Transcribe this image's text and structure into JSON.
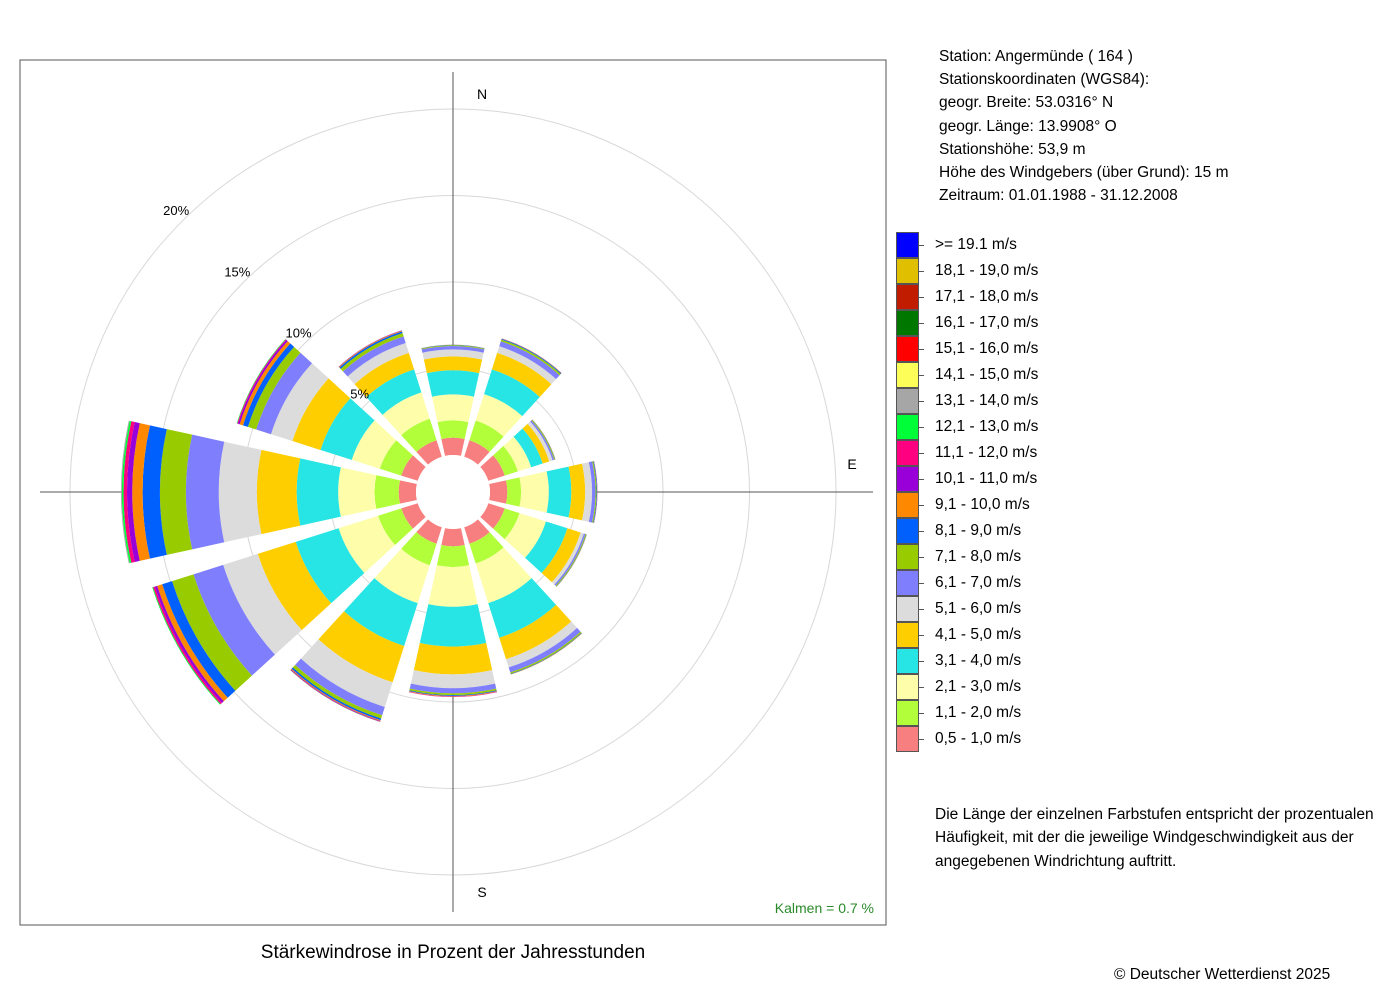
{
  "station": {
    "station_line": "Station:  Angermünde  ( 164 )",
    "coords_header": "Stationskoordinaten (WGS84):",
    "latitude": "geogr. Breite: 53.0316° N",
    "longitude": "geogr. Länge: 13.9908° O",
    "altitude": "Stationshöhe: 53,9 m",
    "sensor_height": "Höhe des Windgebers (über Grund): 15 m",
    "period": "Zeitraum: 01.01.1988 - 31.12.2008"
  },
  "note": {
    "line1": "Die Länge der einzelnen Farbstufen entspricht der prozentualen",
    "line2": "Häufigkeit, mit der die jeweilige Windgeschwindigkeit aus der",
    "line3": "angegebenen Windrichtung auftritt."
  },
  "caption": "Stärkewindrose in Prozent der Jahresstunden",
  "copyright": "© Deutscher Wetterdienst  2025",
  "chart_data": {
    "type": "wind-rose",
    "title": "Stärkewindrose in Prozent der Jahresstunden",
    "calm_label": "Kalmen  =  0.7 %",
    "direction_labels": [
      "N",
      "E",
      "S"
    ],
    "ring_labels": [
      "5%",
      "10%",
      "15%",
      "20%"
    ],
    "ring_values": [
      5,
      10,
      15,
      20
    ],
    "scale_max": 23,
    "sector_width_deg": 30,
    "speed_classes": [
      {
        "label": "0,5 - 1,0 m/s",
        "color": "#f87f7f"
      },
      {
        "label": "1,1 - 2,0 m/s",
        "color": "#b2fe3a"
      },
      {
        "label": "2,1 - 3,0 m/s",
        "color": "#fefeaa"
      },
      {
        "label": "3,1 - 4,0 m/s",
        "color": "#28e5e5"
      },
      {
        "label": "4,1 - 5,0 m/s",
        "color": "#fece00"
      },
      {
        "label": "5,1 - 6,0 m/s",
        "color": "#dcdcdc"
      },
      {
        "label": "6,1 - 7,0 m/s",
        "color": "#7f7ffe"
      },
      {
        "label": "7,1 - 8,0 m/s",
        "color": "#99cc00"
      },
      {
        "label": "8,1 - 9,0 m/s",
        "color": "#0060fe"
      },
      {
        "label": "9,1 - 10,0 m/s",
        "color": "#fe8800"
      },
      {
        "label": "10,1 - 11,0 m/s",
        "color": "#9900d9"
      },
      {
        "label": "11,1 - 12,0 m/s",
        "color": "#fe0080"
      },
      {
        "label": "12,1 - 13,0 m/s",
        "color": "#00fe38"
      },
      {
        "label": "13,1 - 14,0 m/s",
        "color": "#a6a6a6"
      },
      {
        "label": "14,1 - 15,0 m/s",
        "color": "#fefe59"
      },
      {
        "label": "15,1 - 16,0 m/s",
        "color": "#fe0000"
      },
      {
        "label": "16,1 - 17,0 m/s",
        "color": "#007800"
      },
      {
        "label": "17,1 - 18,0 m/s",
        "color": "#c21c00"
      },
      {
        "label": "18,1 - 19,0 m/s",
        "color": "#e0be00"
      },
      {
        "label": ">= 19.1 m/s",
        "color": "#0000fe"
      }
    ],
    "series": [
      {
        "direction": 0,
        "values": [
          1.0,
          1.0,
          1.5,
          1.4,
          0.8,
          0.4,
          0.2,
          0.05,
          0.02,
          0.01,
          0,
          0,
          0,
          0,
          0,
          0,
          0,
          0,
          0,
          0
        ]
      },
      {
        "direction": 30,
        "values": [
          1.0,
          1.2,
          1.6,
          1.5,
          1.0,
          0.4,
          0.3,
          0.1,
          0.05,
          0.02,
          0.01,
          0,
          0,
          0,
          0,
          0,
          0,
          0,
          0,
          0
        ]
      },
      {
        "direction": 60,
        "values": [
          1.0,
          0.8,
          0.8,
          0.7,
          0.4,
          0.2,
          0.1,
          0.05,
          0.02,
          0.01,
          0,
          0,
          0,
          0,
          0,
          0,
          0,
          0,
          0,
          0
        ]
      },
      {
        "direction": 90,
        "values": [
          1.0,
          0.8,
          1.6,
          1.3,
          0.8,
          0.4,
          0.2,
          0.06,
          0.03,
          0.01,
          0.01,
          0,
          0,
          0,
          0,
          0,
          0,
          0,
          0,
          0
        ]
      },
      {
        "direction": 120,
        "values": [
          1.0,
          0.9,
          1.6,
          1.3,
          0.8,
          0.2,
          0.1,
          0.05,
          0.02,
          0.01,
          0,
          0,
          0,
          0,
          0,
          0,
          0,
          0,
          0,
          0
        ]
      },
      {
        "direction": 150,
        "values": [
          1.0,
          1.2,
          2.4,
          2.1,
          1.3,
          0.5,
          0.3,
          0.08,
          0.03,
          0.02,
          0,
          0,
          0,
          0,
          0,
          0,
          0,
          0,
          0,
          0
        ]
      },
      {
        "direction": 180,
        "values": [
          1.0,
          1.2,
          2.3,
          2.3,
          1.6,
          0.8,
          0.3,
          0.1,
          0.05,
          0.03,
          0.02,
          0.01,
          0,
          0,
          0,
          0,
          0,
          0,
          0,
          0
        ]
      },
      {
        "direction": 210,
        "values": [
          1.0,
          1.3,
          2.3,
          2.6,
          2.2,
          1.5,
          0.5,
          0.2,
          0.1,
          0.05,
          0.03,
          0.02,
          0.01,
          0,
          0,
          0,
          0,
          0,
          0,
          0
        ]
      },
      {
        "direction": 240,
        "values": [
          1.0,
          1.4,
          2.4,
          2.6,
          2.3,
          2.1,
          1.8,
          1.3,
          0.6,
          0.3,
          0.15,
          0.1,
          0.05,
          0,
          0,
          0,
          0,
          0,
          0,
          0
        ]
      },
      {
        "direction": 270,
        "values": [
          1.0,
          1.4,
          2.1,
          2.4,
          2.3,
          2.2,
          1.9,
          1.5,
          1.0,
          0.6,
          0.3,
          0.2,
          0.1,
          0.05,
          0,
          0,
          0,
          0,
          0,
          0
        ]
      },
      {
        "direction": 300,
        "values": [
          1.0,
          1.3,
          1.7,
          1.9,
          1.7,
          1.3,
          0.9,
          0.5,
          0.3,
          0.2,
          0.1,
          0.05,
          0.03,
          0,
          0,
          0,
          0,
          0,
          0,
          0
        ]
      },
      {
        "direction": 330,
        "values": [
          1.0,
          1.3,
          1.6,
          1.4,
          1.0,
          0.6,
          0.4,
          0.2,
          0.1,
          0.05,
          0.02,
          0,
          0,
          0,
          0,
          0,
          0,
          0,
          0,
          0
        ]
      }
    ]
  }
}
